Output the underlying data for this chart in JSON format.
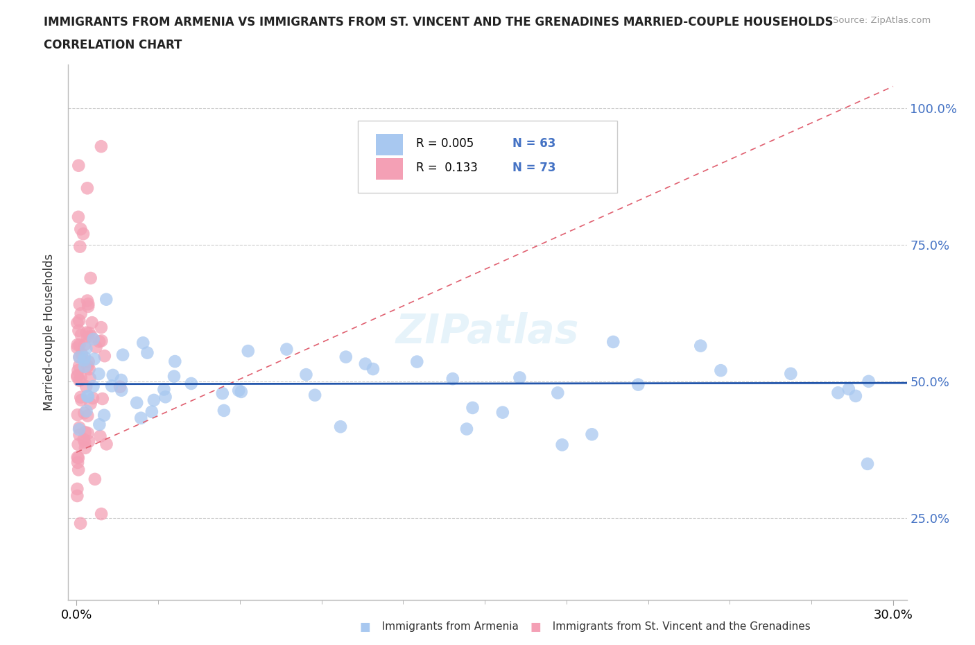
{
  "title_line1": "IMMIGRANTS FROM ARMENIA VS IMMIGRANTS FROM ST. VINCENT AND THE GRENADINES MARRIED-COUPLE HOUSEHOLDS",
  "title_line2": "CORRELATION CHART",
  "source_text": "Source: ZipAtlas.com",
  "ylabel": "Married-couple Households",
  "xlim": [
    -0.003,
    0.305
  ],
  "ylim": [
    0.1,
    1.08
  ],
  "yticks": [
    0.25,
    0.5,
    0.75,
    1.0
  ],
  "ytick_labels": [
    "25.0%",
    "50.0%",
    "75.0%",
    "100.0%"
  ],
  "xtick_labels": [
    "0.0%",
    "30.0%"
  ],
  "color_armenia": "#A8C8F0",
  "color_svg": "#F4A0B5",
  "color_armenia_line": "#2255AA",
  "color_svg_line": "#E06070",
  "watermark": "ZIPatlas",
  "title_color": "#222222",
  "source_color": "#999999",
  "grid_color": "#cccccc",
  "right_tick_color": "#4472C4",
  "legend_R1": "R = 0.005",
  "legend_N1": "N = 63",
  "legend_R2": "R =  0.133",
  "legend_N2": "N = 73"
}
